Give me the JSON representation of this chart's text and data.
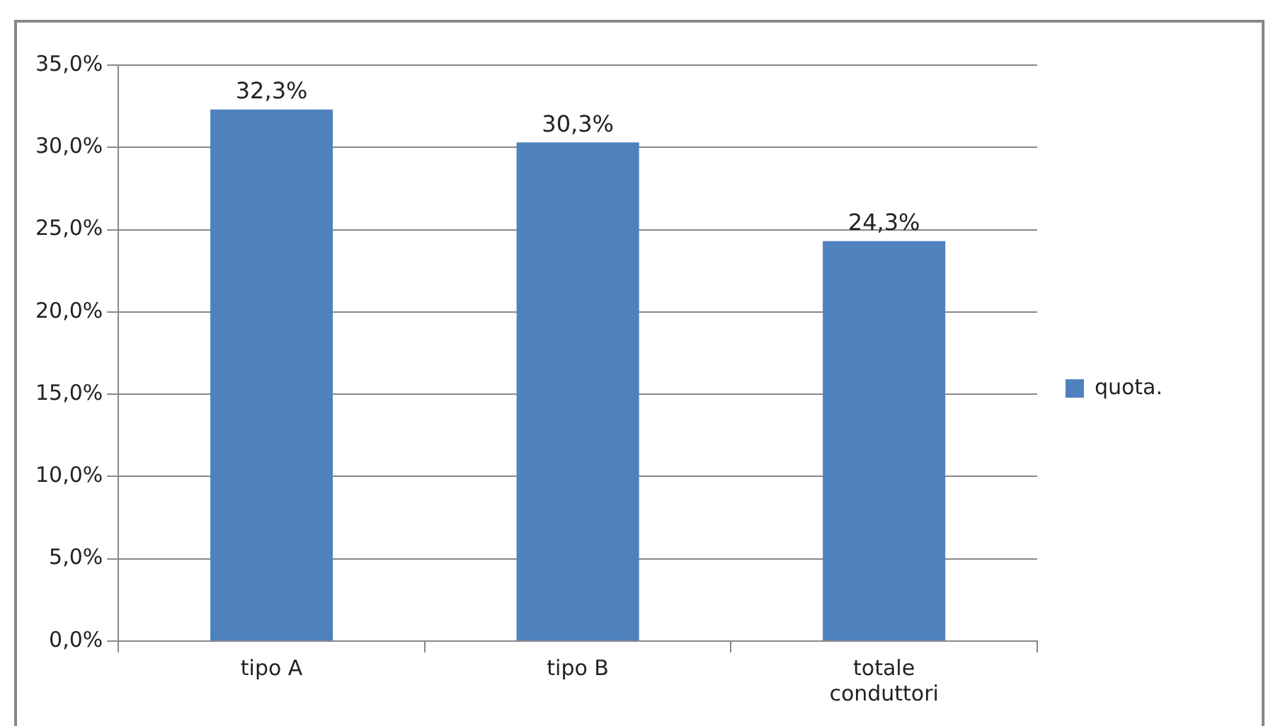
{
  "chart_data": {
    "type": "bar",
    "categories": [
      "tipo A",
      "tipo B",
      "totale conduttori"
    ],
    "series": [
      {
        "name": "quota.",
        "color": "#4f81bd",
        "values": [
          32.3,
          30.3,
          24.3
        ],
        "value_labels": [
          "32,3%",
          "30,3%",
          "24,3%"
        ]
      }
    ],
    "ylim": [
      0,
      35
    ],
    "yticks": [
      {
        "value": 0,
        "label": "0,0%"
      },
      {
        "value": 5,
        "label": "5,0%"
      },
      {
        "value": 10,
        "label": "10,0%"
      },
      {
        "value": 15,
        "label": "15,0%"
      },
      {
        "value": 20,
        "label": "20,0%"
      },
      {
        "value": 25,
        "label": "25,0%"
      },
      {
        "value": 30,
        "label": "30,0%"
      },
      {
        "value": 35,
        "label": "35,0%"
      }
    ],
    "grid": "y",
    "legend": "right"
  }
}
